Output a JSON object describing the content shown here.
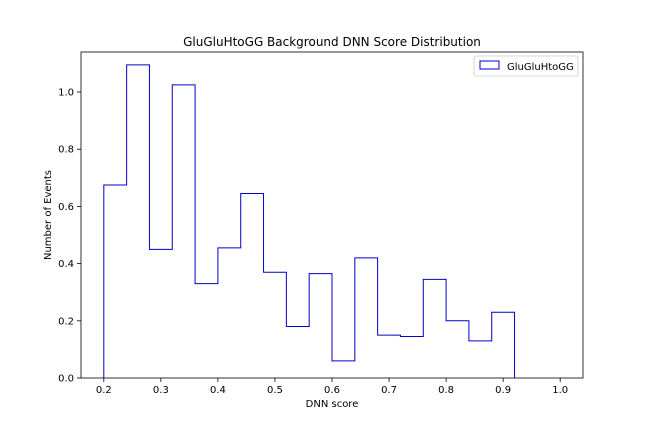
{
  "chart_data": {
    "type": "histogram",
    "title": "GluGluHtoGG Background DNN Score Distribution",
    "xlabel": "DNN score",
    "ylabel": "Number of Events",
    "xlim": [
      0.16,
      1.04
    ],
    "ylim": [
      0,
      1.14
    ],
    "xticks": [
      "0.2",
      "0.3",
      "0.4",
      "0.5",
      "0.6",
      "0.7",
      "0.8",
      "0.9",
      "1.0"
    ],
    "yticks": [
      "0.0",
      "0.2",
      "0.4",
      "0.6",
      "0.8",
      "1.0"
    ],
    "grid": false,
    "legend_position": "top-right",
    "series": [
      {
        "name": "GluGluHtoGG",
        "color": "#0000cc",
        "style": "step",
        "bin_edges": [
          0.2,
          0.24,
          0.28,
          0.32,
          0.36,
          0.4,
          0.44,
          0.48,
          0.52,
          0.56,
          0.6,
          0.64,
          0.68,
          0.72,
          0.76,
          0.8,
          0.84,
          0.88,
          0.92
        ],
        "values": [
          0.675,
          1.095,
          0.45,
          1.025,
          0.33,
          0.455,
          0.645,
          0.37,
          0.18,
          0.365,
          0.06,
          0.42,
          0.15,
          0.145,
          0.345,
          0.2,
          0.13,
          0.23
        ]
      }
    ]
  }
}
